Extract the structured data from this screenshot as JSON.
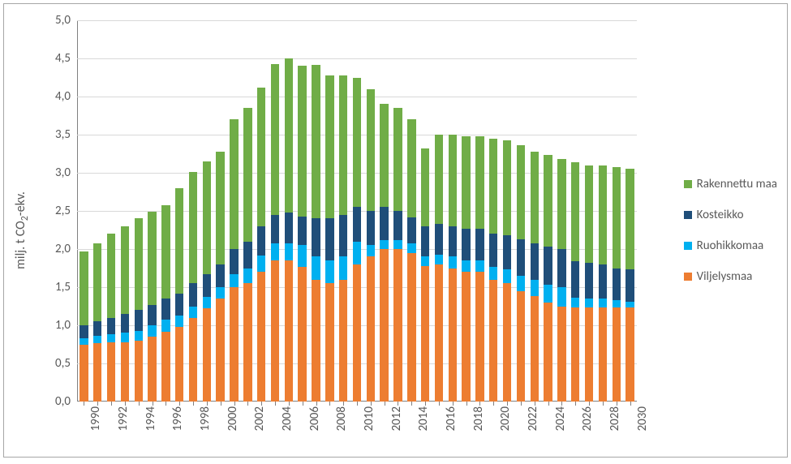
{
  "chart": {
    "type": "stacked-bar",
    "y_axis": {
      "title_html": "milj. t CO<sub>2</sub>-ekv.",
      "min": 0.0,
      "max": 5.0,
      "step": 0.5,
      "tick_labels": [
        "0,0",
        "0,5",
        "1,0",
        "1,5",
        "2,0",
        "2,5",
        "3,0",
        "3,5",
        "4,0",
        "4,5",
        "5,0"
      ],
      "label_fontsize": 15,
      "title_fontsize": 16
    },
    "x_axis": {
      "categories": [
        "1990",
        "1991",
        "1992",
        "1993",
        "1994",
        "1995",
        "1996",
        "1997",
        "1998",
        "1999",
        "2000",
        "2001",
        "2002",
        "2003",
        "2004",
        "2005",
        "2006",
        "2007",
        "2008",
        "2009",
        "2010",
        "2011",
        "2012",
        "2013",
        "2014",
        "2015",
        "2016",
        "2017",
        "2018",
        "2019",
        "2020",
        "2021",
        "2022",
        "2023",
        "2024",
        "2025",
        "2026",
        "2027",
        "2028",
        "2029",
        "2030"
      ],
      "tick_label_step": 2,
      "label_fontsize": 15
    },
    "series": [
      {
        "name": "Viljelysmaa",
        "color": "#ed7d31"
      },
      {
        "name": "Ruohikkomaa",
        "color": "#00b0f0"
      },
      {
        "name": "Kosteikko",
        "color": "#1f4e79"
      },
      {
        "name": "Rakennettu maa",
        "color": "#70ad47"
      }
    ],
    "legend": {
      "position": "right",
      "fontsize": 15
    },
    "colors": {
      "background": "#ffffff",
      "grid": "#d9d9d9",
      "axis": "#808080",
      "text": "#595959",
      "border": "#a6a6a6"
    },
    "bar_width_ratio": 0.62,
    "data": [
      {
        "year": "1990",
        "Viljelysmaa": 0.75,
        "Ruohikkomaa": 0.08,
        "Kosteikko": 0.17,
        "Rakennettu maa": 0.97
      },
      {
        "year": "1991",
        "Viljelysmaa": 0.77,
        "Ruohikkomaa": 0.09,
        "Kosteikko": 0.19,
        "Rakennettu maa": 1.03
      },
      {
        "year": "1992",
        "Viljelysmaa": 0.78,
        "Ruohikkomaa": 0.1,
        "Kosteikko": 0.22,
        "Rakennettu maa": 1.1
      },
      {
        "year": "1993",
        "Viljelysmaa": 0.78,
        "Ruohikkomaa": 0.12,
        "Kosteikko": 0.25,
        "Rakennettu maa": 1.15
      },
      {
        "year": "1994",
        "Viljelysmaa": 0.8,
        "Ruohikkomaa": 0.13,
        "Kosteikko": 0.27,
        "Rakennettu maa": 1.2
      },
      {
        "year": "1995",
        "Viljelysmaa": 0.85,
        "Ruohikkomaa": 0.15,
        "Kosteikko": 0.27,
        "Rakennettu maa": 1.22
      },
      {
        "year": "1996",
        "Viljelysmaa": 0.92,
        "Ruohikkomaa": 0.15,
        "Kosteikko": 0.28,
        "Rakennettu maa": 1.22
      },
      {
        "year": "1997",
        "Viljelysmaa": 0.98,
        "Ruohikkomaa": 0.15,
        "Kosteikko": 0.28,
        "Rakennettu maa": 1.39
      },
      {
        "year": "1998",
        "Viljelysmaa": 1.1,
        "Ruohikkomaa": 0.15,
        "Kosteikko": 0.3,
        "Rakennettu maa": 1.46
      },
      {
        "year": "1999",
        "Viljelysmaa": 1.22,
        "Ruohikkomaa": 0.15,
        "Kosteikko": 0.3,
        "Rakennettu maa": 1.48
      },
      {
        "year": "2000",
        "Viljelysmaa": 1.35,
        "Ruohikkomaa": 0.15,
        "Kosteikko": 0.3,
        "Rakennettu maa": 1.48
      },
      {
        "year": "2001",
        "Viljelysmaa": 1.5,
        "Ruohikkomaa": 0.17,
        "Kosteikko": 0.33,
        "Rakennettu maa": 1.7
      },
      {
        "year": "2002",
        "Viljelysmaa": 1.55,
        "Ruohikkomaa": 0.2,
        "Kosteikko": 0.35,
        "Rakennettu maa": 1.75
      },
      {
        "year": "2003",
        "Viljelysmaa": 1.7,
        "Ruohikkomaa": 0.22,
        "Kosteikko": 0.38,
        "Rakennettu maa": 1.82
      },
      {
        "year": "2004",
        "Viljelysmaa": 1.85,
        "Ruohikkomaa": 0.22,
        "Kosteikko": 0.38,
        "Rakennettu maa": 1.98
      },
      {
        "year": "2005",
        "Viljelysmaa": 1.85,
        "Ruohikkomaa": 0.23,
        "Kosteikko": 0.4,
        "Rakennettu maa": 2.02
      },
      {
        "year": "2006",
        "Viljelysmaa": 1.77,
        "Ruohikkomaa": 0.28,
        "Kosteikko": 0.38,
        "Rakennettu maa": 1.97
      },
      {
        "year": "2007",
        "Viljelysmaa": 1.6,
        "Ruohikkomaa": 0.3,
        "Kosteikko": 0.5,
        "Rakennettu maa": 2.02
      },
      {
        "year": "2008",
        "Viljelysmaa": 1.55,
        "Ruohikkomaa": 0.3,
        "Kosteikko": 0.55,
        "Rakennettu maa": 1.88
      },
      {
        "year": "2009",
        "Viljelysmaa": 1.6,
        "Ruohikkomaa": 0.3,
        "Kosteikko": 0.55,
        "Rakennettu maa": 1.83
      },
      {
        "year": "2010",
        "Viljelysmaa": 1.8,
        "Ruohikkomaa": 0.3,
        "Kosteikko": 0.45,
        "Rakennettu maa": 1.7
      },
      {
        "year": "2011",
        "Viljelysmaa": 1.9,
        "Ruohikkomaa": 0.15,
        "Kosteikko": 0.45,
        "Rakennettu maa": 1.6
      },
      {
        "year": "2012",
        "Viljelysmaa": 2.0,
        "Ruohikkomaa": 0.12,
        "Kosteikko": 0.43,
        "Rakennettu maa": 1.35
      },
      {
        "year": "2013",
        "Viljelysmaa": 2.0,
        "Ruohikkomaa": 0.12,
        "Kosteikko": 0.38,
        "Rakennettu maa": 1.35
      },
      {
        "year": "2014",
        "Viljelysmaa": 1.95,
        "Ruohikkomaa": 0.12,
        "Kosteikko": 0.35,
        "Rakennettu maa": 1.28
      },
      {
        "year": "2015",
        "Viljelysmaa": 1.78,
        "Ruohikkomaa": 0.12,
        "Kosteikko": 0.4,
        "Rakennettu maa": 1.02
      },
      {
        "year": "2016",
        "Viljelysmaa": 1.8,
        "Ruohikkomaa": 0.13,
        "Kosteikko": 0.4,
        "Rakennettu maa": 1.17
      },
      {
        "year": "2017",
        "Viljelysmaa": 1.75,
        "Ruohikkomaa": 0.15,
        "Kosteikko": 0.4,
        "Rakennettu maa": 1.2
      },
      {
        "year": "2018",
        "Viljelysmaa": 1.7,
        "Ruohikkomaa": 0.15,
        "Kosteikko": 0.42,
        "Rakennettu maa": 1.21
      },
      {
        "year": "2019",
        "Viljelysmaa": 1.7,
        "Ruohikkomaa": 0.15,
        "Kosteikko": 0.42,
        "Rakennettu maa": 1.21
      },
      {
        "year": "2020",
        "Viljelysmaa": 1.6,
        "Ruohikkomaa": 0.17,
        "Kosteikko": 0.43,
        "Rakennettu maa": 1.25
      },
      {
        "year": "2021",
        "Viljelysmaa": 1.55,
        "Ruohikkomaa": 0.18,
        "Kosteikko": 0.45,
        "Rakennettu maa": 1.25
      },
      {
        "year": "2022",
        "Viljelysmaa": 1.45,
        "Ruohikkomaa": 0.2,
        "Kosteikko": 0.48,
        "Rakennettu maa": 1.23
      },
      {
        "year": "2023",
        "Viljelysmaa": 1.38,
        "Ruohikkomaa": 0.22,
        "Kosteikko": 0.48,
        "Rakennettu maa": 1.2
      },
      {
        "year": "2024",
        "Viljelysmaa": 1.3,
        "Ruohikkomaa": 0.23,
        "Kosteikko": 0.5,
        "Rakennettu maa": 1.2
      },
      {
        "year": "2025",
        "Viljelysmaa": 1.25,
        "Ruohikkomaa": 0.25,
        "Kosteikko": 0.5,
        "Rakennettu maa": 1.18
      },
      {
        "year": "2026",
        "Viljelysmaa": 1.23,
        "Ruohikkomaa": 0.13,
        "Kosteikko": 0.48,
        "Rakennettu maa": 1.3
      },
      {
        "year": "2027",
        "Viljelysmaa": 1.23,
        "Ruohikkomaa": 0.12,
        "Kosteikko": 0.47,
        "Rakennettu maa": 1.28
      },
      {
        "year": "2028",
        "Viljelysmaa": 1.23,
        "Ruohikkomaa": 0.12,
        "Kosteikko": 0.45,
        "Rakennettu maa": 1.3
      },
      {
        "year": "2029",
        "Viljelysmaa": 1.23,
        "Ruohikkomaa": 0.1,
        "Kosteikko": 0.42,
        "Rakennettu maa": 1.32
      },
      {
        "year": "2030",
        "Viljelysmaa": 1.23,
        "Ruohikkomaa": 0.08,
        "Kosteikko": 0.42,
        "Rakennettu maa": 1.32
      }
    ]
  }
}
